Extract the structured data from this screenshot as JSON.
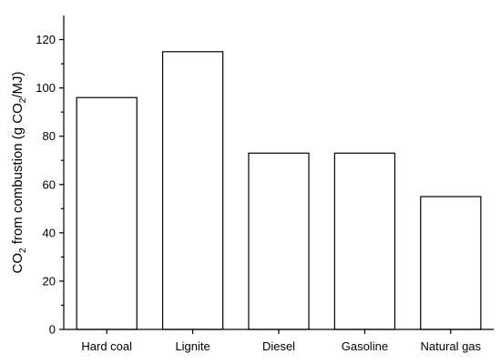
{
  "chart_data": {
    "type": "bar",
    "categories": [
      "Hard coal",
      "Lignite",
      "Diesel",
      "Gasoline",
      "Natural gas"
    ],
    "values": [
      96,
      115,
      73,
      73,
      55
    ],
    "title": "",
    "xlabel": "",
    "ylabel": {
      "prefix": "CO",
      "sub1": "2",
      "middle": " from combustion (g CO",
      "sub2": "2",
      "suffix": "/MJ)"
    },
    "ylim": [
      0,
      130
    ],
    "yticks": [
      0,
      20,
      40,
      60,
      80,
      100,
      120
    ],
    "ytick_labels": [
      "0",
      "20",
      "40",
      "60",
      "80",
      "100",
      "120"
    ],
    "grid": false,
    "legend": false,
    "colors": {
      "bar_fill": "#ffffff",
      "bar_stroke": "#000000",
      "axis": "#000000"
    }
  }
}
